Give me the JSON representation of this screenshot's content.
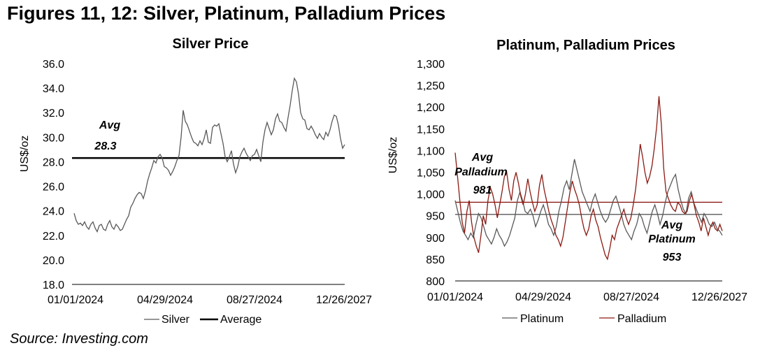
{
  "figure": {
    "title": "Figures 11, 12: Silver, Platinum, Palladium Prices",
    "source": "Source: Investing.com"
  },
  "chart_data": [
    {
      "type": "line",
      "title": "Silver Price",
      "ylabel": "US$/oz",
      "xlabel": "",
      "ylim": [
        18.0,
        36.0
      ],
      "yticks": [
        "18.0",
        "20.0",
        "22.0",
        "24.0",
        "26.0",
        "28.0",
        "30.0",
        "32.0",
        "34.0",
        "36.0"
      ],
      "xticks": [
        "01/01/2024",
        "04/29/2024",
        "08/27/2024",
        "12/26/2027"
      ],
      "grid": false,
      "legend": "bottom",
      "series": [
        {
          "name": "Silver",
          "color": "#595959",
          "values": [
            23.8,
            23.2,
            22.9,
            23.0,
            22.8,
            23.1,
            22.7,
            22.5,
            22.9,
            23.1,
            22.6,
            22.3,
            22.8,
            22.9,
            22.5,
            22.4,
            22.9,
            23.2,
            22.7,
            22.5,
            22.9,
            22.7,
            22.4,
            22.5,
            22.9,
            23.3,
            23.6,
            24.3,
            24.6,
            25.0,
            25.3,
            25.5,
            25.4,
            25.0,
            25.6,
            26.4,
            27.0,
            27.5,
            28.1,
            27.9,
            28.4,
            28.6,
            28.3,
            27.6,
            27.5,
            27.3,
            26.9,
            27.2,
            27.6,
            28.1,
            28.5,
            30.0,
            32.2,
            31.3,
            31.0,
            30.5,
            30.0,
            29.6,
            29.5,
            29.3,
            29.7,
            29.4,
            29.9,
            30.6,
            29.6,
            29.5,
            30.8,
            31.0,
            30.9,
            31.1,
            30.3,
            29.5,
            28.4,
            28.0,
            28.4,
            28.9,
            27.8,
            27.1,
            27.6,
            28.4,
            28.8,
            29.1,
            28.7,
            28.4,
            28.1,
            28.5,
            28.6,
            29.0,
            28.5,
            28.0,
            29.6,
            30.6,
            31.2,
            30.7,
            30.2,
            30.6,
            31.5,
            31.9,
            31.3,
            31.2,
            30.8,
            30.5,
            31.6,
            32.6,
            33.8,
            34.8,
            34.5,
            33.5,
            32.0,
            31.5,
            31.4,
            30.7,
            30.6,
            30.9,
            30.6,
            30.2,
            29.9,
            30.3,
            30.0,
            29.8,
            30.4,
            30.1,
            30.6,
            31.3,
            31.8,
            31.7,
            31.0,
            29.9,
            29.1,
            29.4
          ]
        },
        {
          "name": "Average",
          "color": "#000000",
          "values": [
            28.3,
            28.3
          ]
        }
      ],
      "annotations": [
        {
          "text": "Avg",
          "series": "Average"
        },
        {
          "text": "28.3",
          "series": "Average"
        }
      ]
    },
    {
      "type": "line",
      "title": "Platinum, Palladium Prices",
      "ylabel": "US$/oz",
      "xlabel": "",
      "ylim": [
        800,
        1300
      ],
      "yticks": [
        "800",
        "850",
        "900",
        "950",
        "1,000",
        "1,050",
        "1,100",
        "1,150",
        "1,200",
        "1,250",
        "1,300"
      ],
      "xticks": [
        "01/01/2024",
        "04/29/2024",
        "08/27/2024",
        "12/26/2027"
      ],
      "grid": false,
      "legend": "bottom",
      "series": [
        {
          "name": "Platinum",
          "color": "#595959",
          "values": [
            985,
            960,
            935,
            915,
            905,
            895,
            910,
            900,
            930,
            955,
            945,
            925,
            905,
            895,
            885,
            900,
            920,
            905,
            895,
            880,
            890,
            905,
            925,
            945,
            985,
            1005,
            985,
            960,
            955,
            965,
            950,
            925,
            940,
            960,
            975,
            955,
            930,
            920,
            905,
            925,
            960,
            985,
            1015,
            1030,
            1010,
            1045,
            1080,
            1055,
            1030,
            1005,
            990,
            975,
            960,
            985,
            1000,
            980,
            960,
            945,
            935,
            945,
            965,
            985,
            995,
            975,
            955,
            930,
            915,
            905,
            895,
            915,
            930,
            955,
            945,
            925,
            910,
            935,
            960,
            975,
            955,
            930,
            950,
            980,
            1005,
            1020,
            1035,
            1045,
            1010,
            985,
            965,
            955,
            990,
            1005,
            980,
            965,
            950,
            935,
            955,
            945,
            930,
            925,
            935,
            920,
            915,
            905
          ]
        },
        {
          "name": "Palladium",
          "color": "#8B1A12",
          "values": [
            1095,
            1040,
            985,
            935,
            910,
            960,
            985,
            935,
            900,
            880,
            865,
            905,
            950,
            930,
            985,
            1015,
            1000,
            975,
            945,
            975,
            1005,
            1040,
            1050,
            1010,
            985,
            1030,
            1050,
            1025,
            995,
            975,
            1000,
            1035,
            1005,
            980,
            960,
            975,
            1020,
            1045,
            1010,
            985,
            960,
            940,
            925,
            905,
            895,
            880,
            900,
            935,
            970,
            1005,
            1030,
            1010,
            995,
            975,
            945,
            920,
            905,
            920,
            950,
            965,
            940,
            925,
            900,
            880,
            860,
            850,
            875,
            905,
            895,
            920,
            935,
            950,
            965,
            945,
            930,
            945,
            975,
            1010,
            1060,
            1115,
            1085,
            1050,
            1025,
            1040,
            1065,
            1105,
            1155,
            1225,
            1160,
            1060,
            1005,
            990,
            975,
            965,
            960,
            980,
            975,
            960,
            955,
            960,
            985,
            1000,
            975,
            950,
            935,
            915,
            945,
            925,
            905,
            925,
            935,
            920,
            915,
            930,
            915
          ]
        },
        {
          "name": "Avg Palladium",
          "color": "#8B1A12",
          "values": [
            981,
            981
          ]
        },
        {
          "name": "Avg Platinum",
          "color": "#595959",
          "values": [
            953,
            953
          ]
        }
      ],
      "annotations": [
        {
          "text": "Avg",
          "series": "Avg Palladium"
        },
        {
          "text": "Palladium",
          "series": "Avg Palladium"
        },
        {
          "text": "981",
          "series": "Avg Palladium"
        },
        {
          "text": "Avg",
          "series": "Avg Platinum"
        },
        {
          "text": "Platinum",
          "series": "Avg Platinum"
        },
        {
          "text": "953",
          "series": "Avg Platinum"
        }
      ]
    }
  ]
}
